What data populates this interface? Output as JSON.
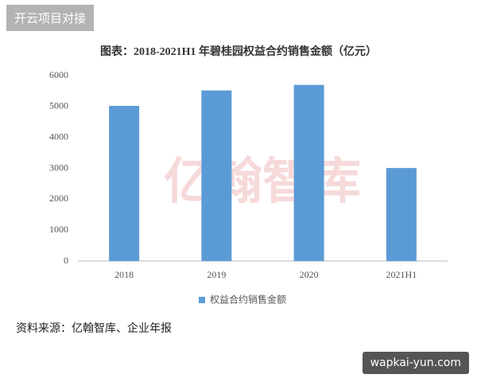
{
  "badge": "开云项目对接",
  "site": "wapkai-yun.com",
  "chart_data": {
    "type": "bar",
    "title": "图表：2018-2021H1 年碧桂园权益合约销售金额（亿元）",
    "categories": [
      "2018",
      "2019",
      "2020",
      "2021H1"
    ],
    "series": [
      {
        "name": "权益合约销售金额",
        "color": "#5b9bd5",
        "values": [
          5020,
          5520,
          5700,
          3010
        ]
      }
    ],
    "ylim": [
      0,
      6000
    ],
    "yticks": [
      0,
      1000,
      2000,
      3000,
      4000,
      5000,
      6000
    ],
    "grid": false,
    "legend": "bottom",
    "watermark": "亿翰智库",
    "source": "资料来源：亿翰智库、企业年报"
  }
}
